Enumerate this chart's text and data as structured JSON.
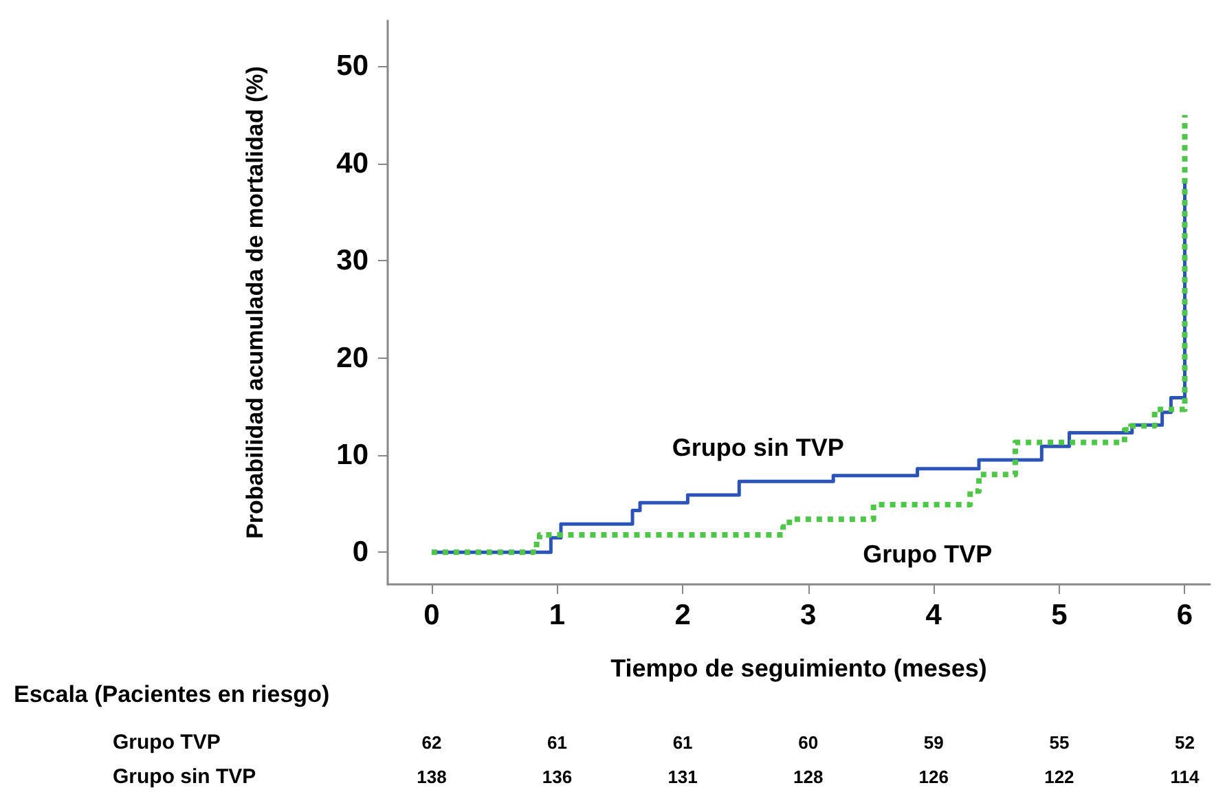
{
  "chart_data": {
    "type": "step",
    "xlabel": "Tiempo de seguimiento (meses)",
    "ylabel": "Probabilidad acumulada de mortalidad (%)",
    "xlim": [
      -0.35,
      6.2
    ],
    "xticks": [
      0,
      1,
      2,
      3,
      4,
      5,
      6
    ],
    "ylim": [
      -3.3,
      54.7
    ],
    "yticks": [
      0,
      10,
      20,
      30,
      40,
      50
    ],
    "grid": false,
    "legend": false,
    "marker": "none",
    "series": [
      {
        "name": "Grupo sin TVP",
        "color": "#2c54b8",
        "line_style": "solid",
        "x": [
          0,
          0.95,
          1.03,
          1.6,
          1.66,
          2.04,
          2.45,
          3.2,
          3.87,
          4.36,
          4.86,
          5.08,
          5.58,
          5.82,
          5.89,
          6
        ],
        "values": [
          0,
          1.5,
          2.9,
          4.3,
          5.1,
          5.9,
          7.3,
          7.9,
          8.6,
          9.5,
          10.9,
          12.3,
          13.1,
          14.4,
          15.9,
          38.5
        ]
      },
      {
        "name": "Grupo TVP",
        "color": "#4fc54a",
        "line_style": "dotted",
        "x": [
          0,
          0.81,
          0.86,
          2.8,
          2.85,
          3.52,
          4.29,
          4.36,
          4.65,
          5.52,
          5.57,
          5.76,
          6
        ],
        "values": [
          0,
          0.8,
          1.8,
          2.6,
          3.4,
          4.9,
          6.3,
          8.0,
          11.3,
          12.6,
          13.0,
          14.7,
          45
        ]
      }
    ],
    "annotations": [
      "Escala (Pacientes en riesgo)",
      "Grupo TVP",
      "62",
      "61",
      "61",
      "60",
      "59",
      "55",
      "52",
      "Grupo sin TVP",
      "138",
      "136",
      "131",
      "128",
      "126",
      "122",
      "114"
    ]
  }
}
